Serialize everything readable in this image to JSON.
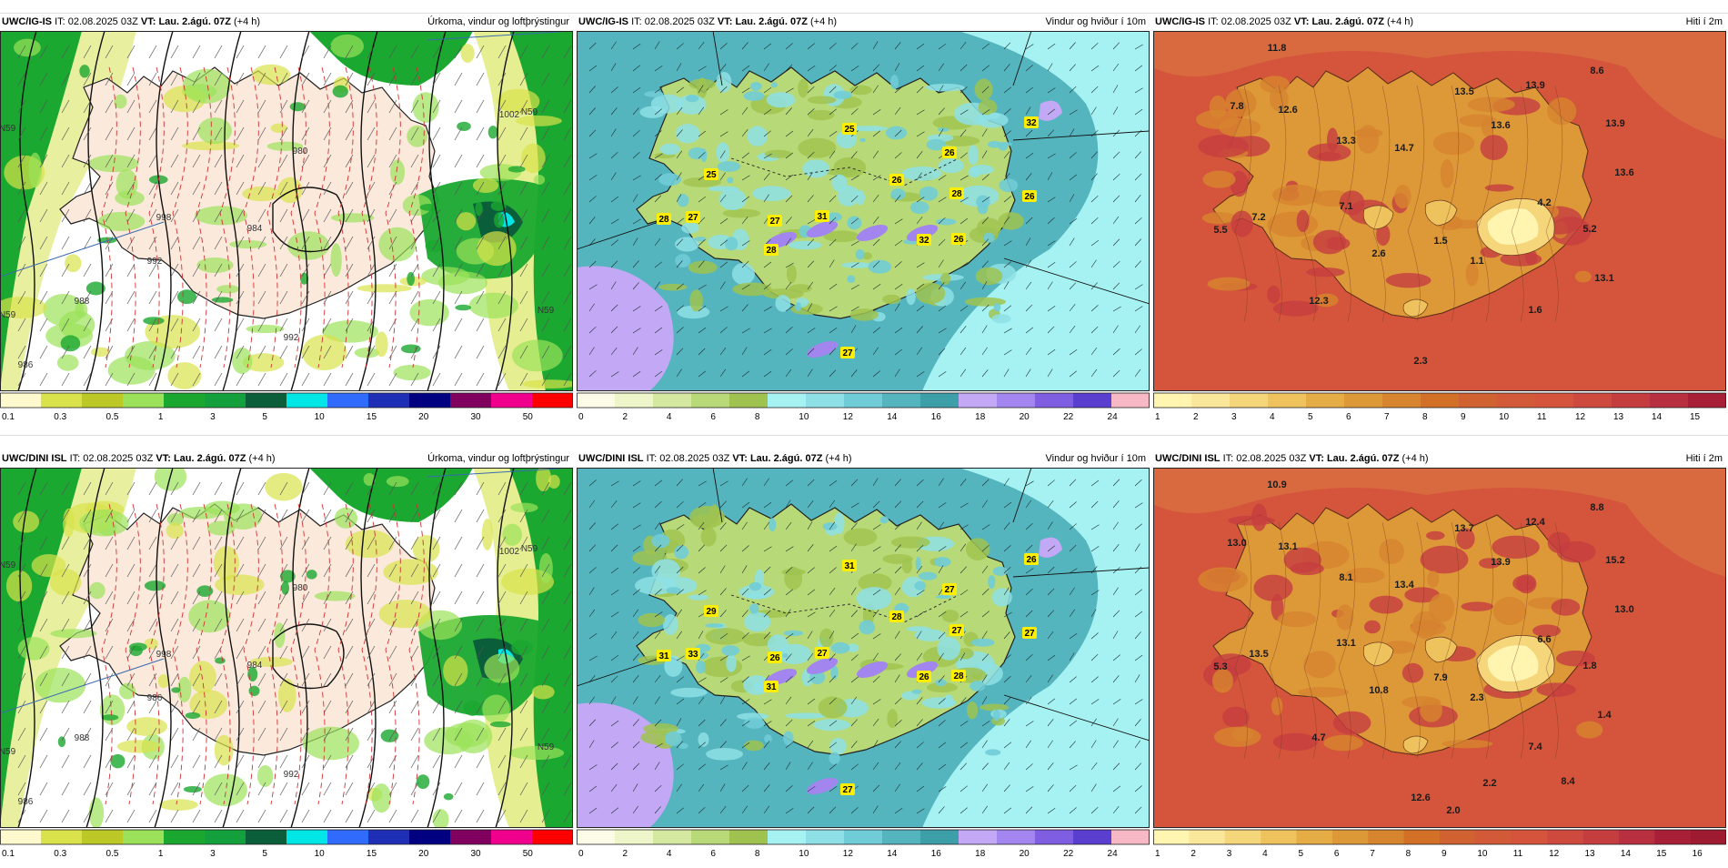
{
  "panels": [
    {
      "model": "UWC/IG-IS",
      "it_label": "IT:",
      "it_value": "02.08.2025 03Z",
      "vt_label": "VT:",
      "vt_value": "Lau. 2.ágú. 07Z",
      "lead": "(+4 h)",
      "title": "Úrkoma, vindur og loftþrýstingur",
      "type": "precip",
      "colorbar": {
        "colors": [
          "#fffacd",
          "#d9e24a",
          "#bcc825",
          "#9be25a",
          "#1aa830",
          "#14a03c",
          "#0a5e3a",
          "#00e5e5",
          "#2f6bff",
          "#1f2fb5",
          "#000080",
          "#800060",
          "#f0008c",
          "#ff0000"
        ],
        "ticks": [
          "0.1",
          "0.3",
          "0.5",
          "1",
          "3",
          "5",
          "10",
          "15",
          "20",
          "30",
          "50"
        ]
      },
      "map_labels": [
        "998",
        "992",
        "988",
        "1002",
        "980",
        "984",
        "992",
        "N59",
        "N59",
        "N59",
        "986",
        "N59"
      ]
    },
    {
      "model": "UWC/IG-IS",
      "it_label": "IT:",
      "it_value": "02.08.2025 03Z",
      "vt_label": "VT:",
      "vt_value": "Lau. 2.ágú. 07Z",
      "lead": "(+4 h)",
      "title": "Vindur og hviður í 10m",
      "type": "wind",
      "colorbar": {
        "colors": [
          "#fbfbe8",
          "#eef5c8",
          "#d5e8a0",
          "#b8d977",
          "#a0c350",
          "#a6f2f2",
          "#8ee0e6",
          "#70ccd6",
          "#55b5be",
          "#3d9fa8",
          "#c3a8f5",
          "#a285ee",
          "#7f5ee2",
          "#5a3ed0",
          "#f7b8c6"
        ],
        "ticks": [
          "0",
          "2",
          "4",
          "6",
          "8",
          "10",
          "12",
          "14",
          "16",
          "18",
          "20",
          "22",
          "24"
        ]
      },
      "gusts": [
        "25",
        "32",
        "26",
        "25",
        "26",
        "28",
        "26",
        "28",
        "27",
        "27",
        "31",
        "32",
        "26",
        "28",
        "27"
      ]
    },
    {
      "model": "UWC/IG-IS",
      "it_label": "IT:",
      "it_value": "02.08.2025 03Z",
      "vt_label": "VT:",
      "vt_value": "Lau. 2.ágú. 07Z",
      "lead": "(+4 h)",
      "title": "Hiti í 2m",
      "type": "temp",
      "colorbar": {
        "colors": [
          "#fff5b0",
          "#fbe79a",
          "#f5d67a",
          "#eec35e",
          "#e6ac45",
          "#dd9838",
          "#d6842e",
          "#d17026",
          "#cf6230",
          "#d25a38",
          "#d4553b",
          "#cf4a3e",
          "#c63d40",
          "#b8303f",
          "#a82038"
        ],
        "ticks": [
          "1",
          "2",
          "3",
          "4",
          "5",
          "6",
          "7",
          "8",
          "9",
          "10",
          "11",
          "12",
          "13",
          "14",
          "15"
        ]
      },
      "temps": [
        "11.8",
        "8.6",
        "13.9",
        "7.8",
        "12.6",
        "13.5",
        "13.3",
        "14.7",
        "13.6",
        "13.9",
        "13.6",
        "4.2",
        "7.1",
        "7.2",
        "5.5",
        "2.6",
        "1.5",
        "1.1",
        "5.2",
        "13.1",
        "12.3",
        "1.6",
        "2.3"
      ]
    },
    {
      "model": "UWC/DINI ISL",
      "it_label": "IT:",
      "it_value": "02.08.2025 03Z",
      "vt_label": "VT:",
      "vt_value": "Lau. 2.ágú. 07Z",
      "lead": "(+4 h)",
      "title": "Úrkoma, vindur og loftþrýstingur",
      "type": "precip",
      "colorbar": {
        "colors": [
          "#fffacd",
          "#d9e24a",
          "#bcc825",
          "#9be25a",
          "#1aa830",
          "#14a03c",
          "#0a5e3a",
          "#00e5e5",
          "#2f6bff",
          "#1f2fb5",
          "#000080",
          "#800060",
          "#f0008c",
          "#ff0000"
        ],
        "ticks": [
          "0.1",
          "0.3",
          "0.5",
          "1",
          "3",
          "5",
          "10",
          "15",
          "20",
          "30",
          "50"
        ]
      },
      "map_labels": [
        "998",
        "986",
        "988",
        "1002",
        "980",
        "984",
        "992",
        "N59",
        "N59",
        "N59",
        "986",
        "N59"
      ]
    },
    {
      "model": "UWC/DINI ISL",
      "it_label": "IT:",
      "it_value": "02.08.2025 03Z",
      "vt_label": "VT:",
      "vt_value": "Lau. 2.ágú. 07Z",
      "lead": "(+4 h)",
      "title": "Vindur og hviður í 10m",
      "type": "wind",
      "colorbar": {
        "colors": [
          "#fbfbe8",
          "#eef5c8",
          "#d5e8a0",
          "#b8d977",
          "#a0c350",
          "#a6f2f2",
          "#8ee0e6",
          "#70ccd6",
          "#55b5be",
          "#3d9fa8",
          "#c3a8f5",
          "#a285ee",
          "#7f5ee2",
          "#5a3ed0",
          "#f7b8c6"
        ],
        "ticks": [
          "0",
          "2",
          "4",
          "6",
          "8",
          "10",
          "12",
          "14",
          "16",
          "18",
          "20",
          "22",
          "24"
        ]
      },
      "gusts": [
        "31",
        "26",
        "27",
        "29",
        "28",
        "27",
        "27",
        "31",
        "33",
        "26",
        "27",
        "26",
        "28",
        "31",
        "27"
      ]
    },
    {
      "model": "UWC/DINI ISL",
      "it_label": "IT:",
      "it_value": "02.08.2025 03Z",
      "vt_label": "VT:",
      "vt_value": "Lau. 2.ágú. 07Z",
      "lead": "(+4 h)",
      "title": "Hiti í 2m",
      "type": "temp",
      "colorbar": {
        "colors": [
          "#fff5b0",
          "#fbe79a",
          "#f5d67a",
          "#eec35e",
          "#e6ac45",
          "#dd9838",
          "#d6842e",
          "#d17026",
          "#cf6230",
          "#d25a38",
          "#d4553b",
          "#cf4a3e",
          "#c63d40",
          "#b8303f",
          "#a82038",
          "#9e1a30"
        ],
        "ticks": [
          "1",
          "2",
          "3",
          "4",
          "5",
          "6",
          "7",
          "8",
          "9",
          "10",
          "11",
          "12",
          "13",
          "14",
          "15",
          "16"
        ]
      },
      "temps": [
        "10.9",
        "8.8",
        "12.4",
        "13.0",
        "13.1",
        "13.7",
        "8.1",
        "13.4",
        "13.9",
        "15.2",
        "13.0",
        "6.6",
        "13.1",
        "13.5",
        "5.3",
        "10.8",
        "7.9",
        "2.3",
        "1.8",
        "1.4",
        "4.7",
        "7.4",
        "12.6",
        "8.4",
        "2.2",
        "2.0"
      ]
    }
  ]
}
